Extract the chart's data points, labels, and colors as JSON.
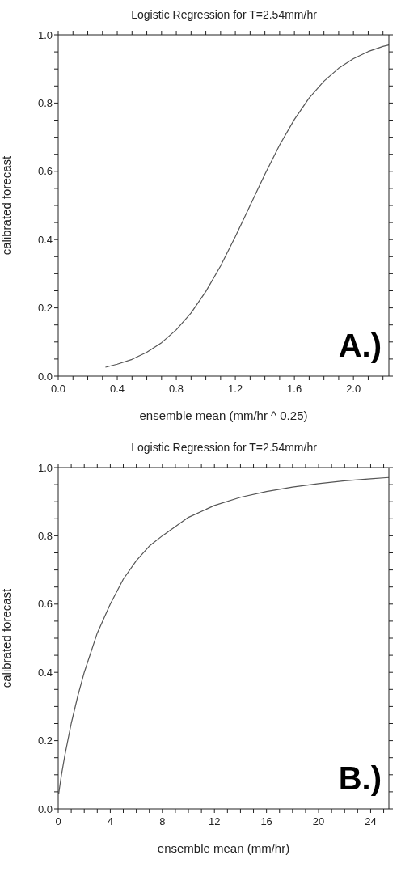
{
  "chart_data": [
    {
      "type": "line",
      "title": "Logistic Regression for T=2.54mm/hr",
      "xlabel": "ensemble mean (mm/hr ^ 0.25)",
      "ylabel": "calibrated forecast",
      "marker": "none",
      "color": "#555555",
      "x": [
        0.32,
        0.4,
        0.5,
        0.6,
        0.7,
        0.8,
        0.9,
        1.0,
        1.1,
        1.2,
        1.3,
        1.4,
        1.5,
        1.6,
        1.7,
        1.8,
        1.9,
        2.0,
        2.1,
        2.2,
        2.24
      ],
      "values": [
        0.026,
        0.035,
        0.049,
        0.07,
        0.098,
        0.136,
        0.185,
        0.248,
        0.323,
        0.409,
        0.5,
        0.591,
        0.677,
        0.752,
        0.815,
        0.864,
        0.902,
        0.93,
        0.951,
        0.966,
        0.97
      ],
      "xlim": [
        0,
        2.24
      ],
      "xticks": [
        {
          "value": 0,
          "label": "0.0"
        },
        {
          "value": 0.1,
          "label": null
        },
        {
          "value": 0.2,
          "label": null
        },
        {
          "value": 0.3,
          "label": null
        },
        {
          "value": 0.4,
          "label": "0.4"
        },
        {
          "value": 0.5,
          "label": null
        },
        {
          "value": 0.6,
          "label": null
        },
        {
          "value": 0.7,
          "label": null
        },
        {
          "value": 0.8,
          "label": "0.8"
        },
        {
          "value": 0.9,
          "label": null
        },
        {
          "value": 1.0,
          "label": null
        },
        {
          "value": 1.1,
          "label": null
        },
        {
          "value": 1.2,
          "label": "1.2"
        },
        {
          "value": 1.3,
          "label": null
        },
        {
          "value": 1.4,
          "label": null
        },
        {
          "value": 1.5,
          "label": null
        },
        {
          "value": 1.6,
          "label": "1.6"
        },
        {
          "value": 1.7,
          "label": null
        },
        {
          "value": 1.8,
          "label": null
        },
        {
          "value": 1.9,
          "label": null
        },
        {
          "value": 2.0,
          "label": "2.0"
        },
        {
          "value": 2.1,
          "label": null
        },
        {
          "value": 2.2,
          "label": null
        }
      ],
      "ylim": [
        0,
        1
      ],
      "yticks": [
        {
          "value": 0,
          "label": "0.0"
        },
        {
          "value": 0.05,
          "label": null
        },
        {
          "value": 0.1,
          "label": null
        },
        {
          "value": 0.15,
          "label": null
        },
        {
          "value": 0.2,
          "label": "0.2"
        },
        {
          "value": 0.25,
          "label": null
        },
        {
          "value": 0.3,
          "label": null
        },
        {
          "value": 0.35,
          "label": null
        },
        {
          "value": 0.4,
          "label": "0.4"
        },
        {
          "value": 0.45,
          "label": null
        },
        {
          "value": 0.5,
          "label": null
        },
        {
          "value": 0.55,
          "label": null
        },
        {
          "value": 0.6,
          "label": "0.6"
        },
        {
          "value": 0.65,
          "label": null
        },
        {
          "value": 0.7,
          "label": null
        },
        {
          "value": 0.75,
          "label": null
        },
        {
          "value": 0.8,
          "label": "0.8"
        },
        {
          "value": 0.85,
          "label": null
        },
        {
          "value": 0.9,
          "label": null
        },
        {
          "value": 0.95,
          "label": null
        },
        {
          "value": 1.0,
          "label": "1.0"
        }
      ],
      "annotations": [
        "A.)"
      ]
    },
    {
      "type": "line",
      "title": "Logistic Regression for T=2.54mm/hr",
      "xlabel": "ensemble mean (mm/hr)",
      "ylabel": "calibrated forecast",
      "marker": "none",
      "color": "#555555",
      "x": [
        0.04,
        0.1,
        0.25,
        0.5,
        0.75,
        1,
        1.5,
        2,
        3,
        4,
        5,
        6,
        7,
        8,
        10,
        12,
        14,
        16,
        18,
        20,
        22,
        24,
        25.4
      ],
      "values": [
        0.044,
        0.061,
        0.1,
        0.155,
        0.203,
        0.25,
        0.33,
        0.4,
        0.515,
        0.6,
        0.673,
        0.727,
        0.77,
        0.8,
        0.854,
        0.889,
        0.913,
        0.93,
        0.943,
        0.953,
        0.961,
        0.967,
        0.971
      ],
      "xlim": [
        0,
        25.4
      ],
      "xticks": [
        0,
        {
          "value": 1,
          "label": null
        },
        {
          "value": 2,
          "label": null
        },
        {
          "value": 3,
          "label": null
        },
        4,
        {
          "value": 5,
          "label": null
        },
        {
          "value": 6,
          "label": null
        },
        {
          "value": 7,
          "label": null
        },
        8,
        {
          "value": 9,
          "label": null
        },
        {
          "value": 10,
          "label": null
        },
        {
          "value": 11,
          "label": null
        },
        12,
        {
          "value": 13,
          "label": null
        },
        {
          "value": 14,
          "label": null
        },
        {
          "value": 15,
          "label": null
        },
        16,
        {
          "value": 17,
          "label": null
        },
        {
          "value": 18,
          "label": null
        },
        {
          "value": 19,
          "label": null
        },
        20,
        {
          "value": 21,
          "label": null
        },
        {
          "value": 22,
          "label": null
        },
        {
          "value": 23,
          "label": null
        },
        24,
        {
          "value": 25,
          "label": null
        }
      ],
      "ylim": [
        0,
        1
      ],
      "yticks": [
        {
          "value": 0,
          "label": "0.0"
        },
        {
          "value": 0.05,
          "label": null
        },
        {
          "value": 0.1,
          "label": null
        },
        {
          "value": 0.15,
          "label": null
        },
        {
          "value": 0.2,
          "label": "0.2"
        },
        {
          "value": 0.25,
          "label": null
        },
        {
          "value": 0.3,
          "label": null
        },
        {
          "value": 0.35,
          "label": null
        },
        {
          "value": 0.4,
          "label": "0.4"
        },
        {
          "value": 0.45,
          "label": null
        },
        {
          "value": 0.5,
          "label": null
        },
        {
          "value": 0.55,
          "label": null
        },
        {
          "value": 0.6,
          "label": "0.6"
        },
        {
          "value": 0.65,
          "label": null
        },
        {
          "value": 0.7,
          "label": null
        },
        {
          "value": 0.75,
          "label": null
        },
        {
          "value": 0.8,
          "label": "0.8"
        },
        {
          "value": 0.85,
          "label": null
        },
        {
          "value": 0.9,
          "label": null
        },
        {
          "value": 0.95,
          "label": null
        },
        {
          "value": 1.0,
          "label": "1.0"
        }
      ],
      "annotations": [
        "B.)"
      ]
    }
  ]
}
